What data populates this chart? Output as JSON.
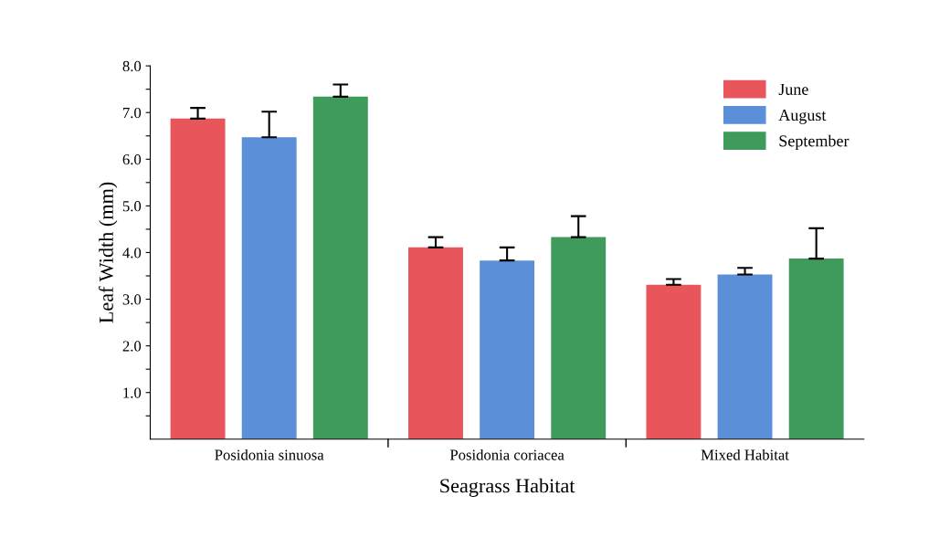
{
  "chart_data": {
    "type": "bar",
    "xlabel": "Seagrass Habitat",
    "ylabel": "Leaf Width (mm)",
    "categories": [
      "Posidonia sinuosa",
      "Posidonia coriacea",
      "Mixed Habitat"
    ],
    "series": [
      {
        "name": "June",
        "color": "#e8565b",
        "values": [
          6.87,
          4.11,
          3.31
        ],
        "errors": [
          [
            6.87,
            7.1
          ],
          [
            4.11,
            4.33
          ],
          [
            3.31,
            3.43
          ]
        ]
      },
      {
        "name": "August",
        "color": "#5b8fd8",
        "values": [
          6.47,
          3.83,
          3.53
        ],
        "errors": [
          [
            6.47,
            7.02
          ],
          [
            3.83,
            4.11
          ],
          [
            3.53,
            3.67
          ]
        ]
      },
      {
        "name": "September",
        "color": "#3f9b5b",
        "values": [
          7.34,
          4.33,
          3.87
        ],
        "errors": [
          [
            7.34,
            7.6
          ],
          [
            4.33,
            4.78
          ],
          [
            3.87,
            4.52
          ]
        ]
      }
    ],
    "ylim": [
      0,
      8
    ],
    "yticks": [
      {
        "value": 0.5,
        "label": null
      },
      {
        "value": 1,
        "label": "1.0"
      },
      {
        "value": 1.5,
        "label": null
      },
      {
        "value": 2,
        "label": "2.0"
      },
      {
        "value": 2.5,
        "label": null
      },
      {
        "value": 3,
        "label": "3.0"
      },
      {
        "value": 3.5,
        "label": null
      },
      {
        "value": 4,
        "label": "4.0"
      },
      {
        "value": 4.5,
        "label": null
      },
      {
        "value": 5,
        "label": "5.0"
      },
      {
        "value": 5.5,
        "label": null
      },
      {
        "value": 6,
        "label": "6.0"
      },
      {
        "value": 6.5,
        "label": null
      },
      {
        "value": 7,
        "label": "7.0"
      },
      {
        "value": 7.5,
        "label": null
      },
      {
        "value": 8,
        "label": "8.0"
      }
    ],
    "legend": "top right",
    "grid": false
  }
}
